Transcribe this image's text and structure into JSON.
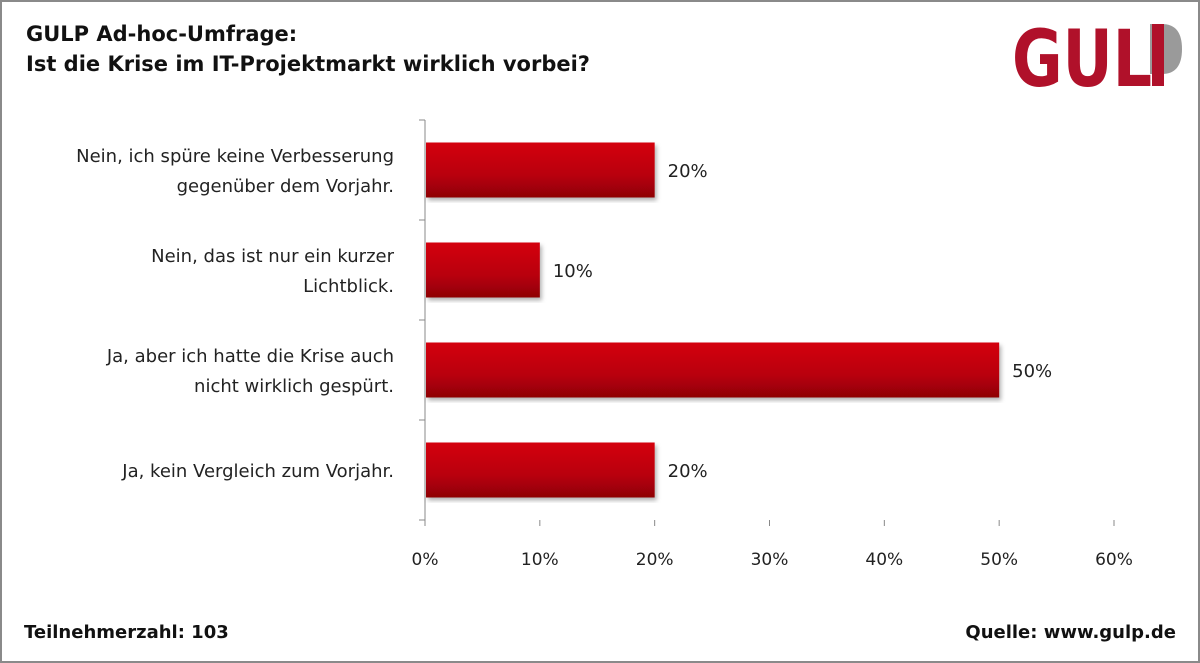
{
  "header": {
    "title_line1": "GULP Ad-hoc-Umfrage:",
    "title_line2": "Ist die Krise im IT-Projektmarkt wirklich vorbei?",
    "logo_text": "GULP"
  },
  "footer": {
    "participants": "Teilnehmerzahl: 103",
    "source": "Quelle: www.gulp.de"
  },
  "colors": {
    "bar": "#c00010",
    "logo": "#b0112a"
  },
  "chart_data": {
    "type": "bar",
    "orientation": "horizontal",
    "categories": [
      [
        "Nein, ich spüre keine Verbesserung",
        "gegenüber dem Vorjahr."
      ],
      [
        "Nein, das ist nur ein kurzer",
        "Lichtblick."
      ],
      [
        "Ja, aber ich hatte die Krise auch",
        "nicht wirklich gespürt."
      ],
      [
        "Ja, kein Vergleich zum Vorjahr."
      ]
    ],
    "values": [
      20,
      10,
      50,
      20
    ],
    "data_labels": [
      "20%",
      "10%",
      "50%",
      "20%"
    ],
    "xlim": [
      0,
      60
    ],
    "xticks": [
      0,
      10,
      20,
      30,
      40,
      50,
      60
    ],
    "xtick_labels": [
      "0%",
      "10%",
      "20%",
      "30%",
      "40%",
      "50%",
      "60%"
    ],
    "grid": false
  }
}
